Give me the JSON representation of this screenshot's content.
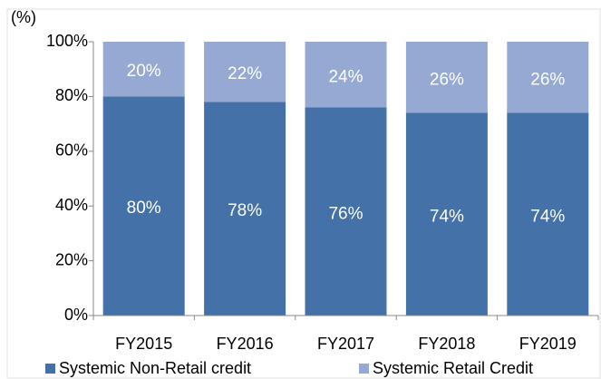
{
  "chart_data": {
    "type": "stacked_bar",
    "y_axis_label": "(%)",
    "categories": [
      "FY2015",
      "FY2016",
      "FY2017",
      "FY2018",
      "FY2019"
    ],
    "series": [
      {
        "name": "Systemic Non-Retail credit",
        "color": "#4472a8",
        "values": [
          80,
          78,
          76,
          74,
          74
        ],
        "value_labels": [
          "80%",
          "78%",
          "76%",
          "74%",
          "74%"
        ]
      },
      {
        "name": "Systemic Retail Credit",
        "color": "#95a9d3",
        "values": [
          20,
          22,
          24,
          26,
          26
        ],
        "value_labels": [
          "20%",
          "22%",
          "24%",
          "26%",
          "26%"
        ]
      }
    ],
    "ylim": [
      0,
      100
    ],
    "yticks": [
      {
        "value": 0,
        "label": "0%"
      },
      {
        "value": 20,
        "label": "20%"
      },
      {
        "value": 40,
        "label": "40%"
      },
      {
        "value": 60,
        "label": "60%"
      },
      {
        "value": 80,
        "label": "80%"
      },
      {
        "value": 100,
        "label": "100%"
      }
    ],
    "legend": "bottom"
  }
}
